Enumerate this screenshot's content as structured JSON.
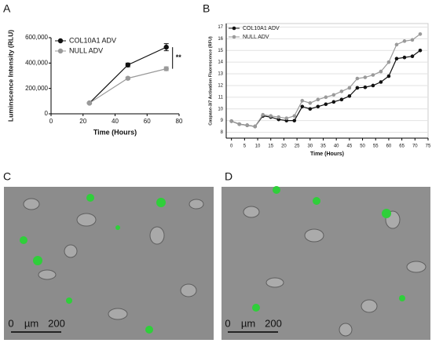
{
  "panel_labels": [
    "A",
    "B",
    "C",
    "D"
  ],
  "chart_data": [
    {
      "type": "line",
      "x_label": "Time (Hours)",
      "y_label": "Luminscence Intensity (RLU)",
      "x": [
        24,
        48,
        72
      ],
      "series": [
        {
          "name": "COL10A1 ADV",
          "color": "#111111",
          "values": [
            85000,
            385000,
            525000
          ],
          "errors": [
            6000,
            15000,
            28000
          ]
        },
        {
          "name": "NULL ADV",
          "color": "#9a9a9a",
          "values": [
            85000,
            280000,
            355000
          ],
          "errors": [
            5000,
            10000,
            15000
          ]
        }
      ],
      "xlim": [
        0,
        80
      ],
      "xticks": [
        0,
        20,
        40,
        60,
        80
      ],
      "ylim": [
        0,
        600000
      ],
      "yticks": [
        0,
        {
          "value": 200000,
          "label": "200,000"
        },
        {
          "value": 400000,
          "label": "400,000"
        },
        {
          "value": 600000,
          "label": "600,000"
        }
      ],
      "annotation": "**",
      "legend": "upper-left"
    },
    {
      "type": "line",
      "x_label": "Time (Hours)",
      "y_label": "Caspase-3/7 Activation Fluorescence (RFU)",
      "x": [
        0,
        3,
        6,
        9,
        12,
        15,
        18,
        21,
        24,
        27,
        30,
        33,
        36,
        39,
        42,
        45,
        48,
        51,
        54,
        57,
        60,
        63,
        66,
        69,
        72
      ],
      "series": [
        {
          "name": "COL10A1 ADV",
          "color": "#111111",
          "values": [
            8.95,
            8.7,
            8.6,
            8.5,
            9.4,
            9.3,
            9.1,
            9.0,
            9.0,
            10.2,
            10.0,
            10.2,
            10.4,
            10.6,
            10.8,
            11.1,
            11.8,
            11.85,
            12.0,
            12.3,
            12.8,
            14.3,
            14.4,
            14.5,
            15.0
          ]
        },
        {
          "name": "NULL ADV",
          "color": "#9a9a9a",
          "values": [
            8.95,
            8.7,
            8.6,
            8.5,
            9.5,
            9.4,
            9.3,
            9.2,
            9.4,
            10.7,
            10.5,
            10.8,
            11.0,
            11.2,
            11.5,
            11.8,
            12.6,
            12.7,
            12.9,
            13.2,
            14.0,
            15.5,
            15.8,
            15.9,
            16.4
          ]
        }
      ],
      "xlim": [
        -2,
        75
      ],
      "xticks": [
        0,
        5,
        10,
        15,
        20,
        25,
        30,
        35,
        40,
        45,
        50,
        55,
        60,
        65,
        70,
        75
      ],
      "ylim": [
        7.5,
        17.3
      ],
      "yticks": [
        8,
        9,
        10,
        11,
        12,
        13,
        14,
        15,
        16,
        17
      ],
      "grid": true,
      "legend": "upper-left"
    }
  ],
  "scale_bars": [
    [
      "0",
      "µm",
      "200"
    ],
    [
      "0",
      "µm",
      "200"
    ]
  ]
}
